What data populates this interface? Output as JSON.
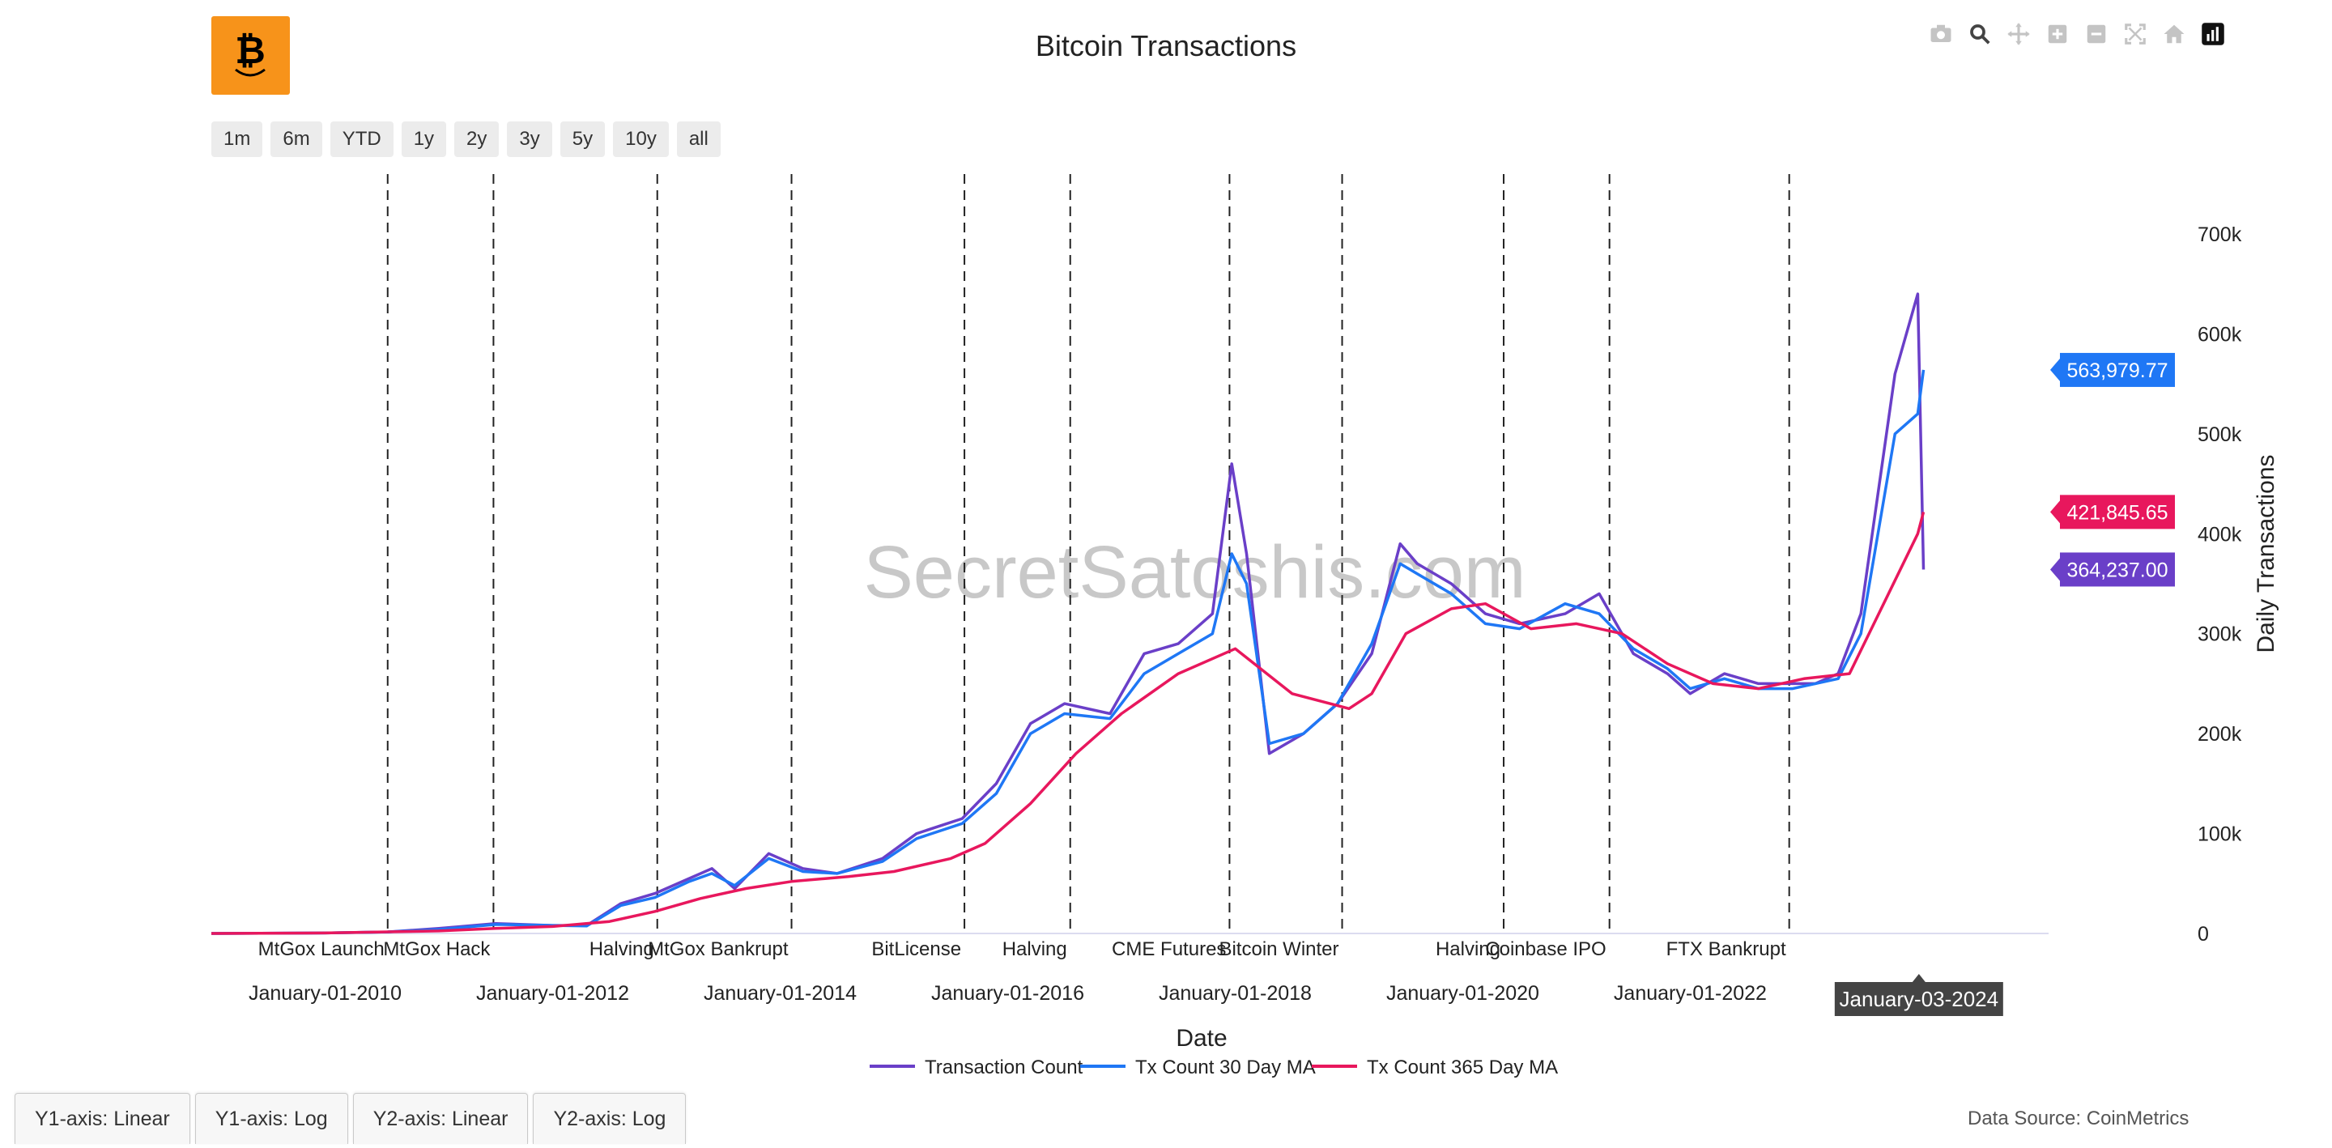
{
  "header": {
    "title": "Bitcoin Transactions"
  },
  "range_buttons": [
    "1m",
    "6m",
    "YTD",
    "1y",
    "2y",
    "3y",
    "5y",
    "10y",
    "all"
  ],
  "modebar": [
    "camera-icon",
    "zoom-icon",
    "pan-icon",
    "zoom-in-icon",
    "zoom-out-icon",
    "autoscale-icon",
    "reset-axes-icon",
    "plotly-logo-icon"
  ],
  "tabs": [
    "Y1-axis: Linear",
    "Y1-axis: Log",
    "Y2-axis: Linear",
    "Y2-axis: Log"
  ],
  "footer": {
    "source": "Data Source: CoinMetrics"
  },
  "watermark": "SecretSatoshis.com",
  "colors": {
    "tx": "#6a3fc8",
    "ma30": "#1f77f5",
    "ma365": "#e8175d",
    "event_line": "#222222",
    "brand": "#f7931a"
  },
  "chart_data": {
    "type": "line",
    "title": "Bitcoin Transactions",
    "xlabel": "Date",
    "ylabel": "Daily Transactions",
    "x_range": [
      2009.0,
      2025.15
    ],
    "ylim": [
      0,
      760000
    ],
    "y_ticks": [
      {
        "value": 0,
        "label": "0"
      },
      {
        "value": 100000,
        "label": "100k"
      },
      {
        "value": 200000,
        "label": "200k"
      },
      {
        "value": 300000,
        "label": "300k"
      },
      {
        "value": 400000,
        "label": "400k"
      },
      {
        "value": 500000,
        "label": "500k"
      },
      {
        "value": 600000,
        "label": "600k"
      },
      {
        "value": 700000,
        "label": "700k"
      }
    ],
    "x_ticks": [
      {
        "value": 2010.0,
        "label": "January-01-2010"
      },
      {
        "value": 2012.0,
        "label": "January-01-2012"
      },
      {
        "value": 2014.0,
        "label": "January-01-2014"
      },
      {
        "value": 2016.0,
        "label": "January-01-2016"
      },
      {
        "value": 2018.0,
        "label": "January-01-2018"
      },
      {
        "value": 2020.0,
        "label": "January-01-2020"
      },
      {
        "value": 2022.0,
        "label": "January-01-2022"
      }
    ],
    "hover_date": {
      "value": 2024.01,
      "label": "January-03-2024"
    },
    "events": [
      {
        "x": 2010.55,
        "label": "MtGox Launch"
      },
      {
        "x": 2011.48,
        "label": "MtGox Hack"
      },
      {
        "x": 2012.92,
        "label": "Halving"
      },
      {
        "x": 2014.1,
        "label": "MtGox Bankrupt"
      },
      {
        "x": 2015.62,
        "label": "BitLicense"
      },
      {
        "x": 2016.55,
        "label": "Halving"
      },
      {
        "x": 2017.95,
        "label": "CME Futures"
      },
      {
        "x": 2018.94,
        "label": "Bitcoin Winter"
      },
      {
        "x": 2020.36,
        "label": "Halving"
      },
      {
        "x": 2021.29,
        "label": "Coinbase IPO"
      },
      {
        "x": 2022.87,
        "label": "FTX Bankrupt"
      }
    ],
    "series": [
      {
        "name": "Transaction Count",
        "color": "#6a3fc8",
        "last_label": "364,237.00",
        "x": [
          2009.0,
          2010.0,
          2010.55,
          2011.0,
          2011.5,
          2012.0,
          2012.3,
          2012.6,
          2012.9,
          2013.2,
          2013.4,
          2013.6,
          2013.9,
          2014.2,
          2014.5,
          2014.9,
          2015.2,
          2015.6,
          2015.9,
          2016.2,
          2016.5,
          2016.9,
          2017.2,
          2017.5,
          2017.8,
          2017.97,
          2018.1,
          2018.3,
          2018.6,
          2018.9,
          2019.2,
          2019.45,
          2019.6,
          2019.9,
          2020.2,
          2020.5,
          2020.9,
          2021.2,
          2021.5,
          2021.8,
          2022.0,
          2022.3,
          2022.6,
          2022.9,
          2023.1,
          2023.3,
          2023.5,
          2023.8,
          2024.0,
          2024.05
        ],
        "y": [
          0,
          500,
          1500,
          5000,
          10000,
          8000,
          8000,
          30000,
          40000,
          55000,
          65000,
          45000,
          80000,
          65000,
          60000,
          75000,
          100000,
          115000,
          150000,
          210000,
          230000,
          220000,
          280000,
          290000,
          320000,
          470000,
          380000,
          180000,
          200000,
          230000,
          280000,
          390000,
          370000,
          350000,
          320000,
          310000,
          320000,
          340000,
          280000,
          260000,
          240000,
          260000,
          250000,
          250000,
          250000,
          260000,
          320000,
          560000,
          640000,
          364237
        ]
      },
      {
        "name": "Tx Count 30 Day MA",
        "color": "#1f77f5",
        "last_label": "563,979.77",
        "x": [
          2009.0,
          2010.0,
          2010.55,
          2011.0,
          2011.5,
          2012.0,
          2012.3,
          2012.6,
          2012.9,
          2013.2,
          2013.4,
          2013.6,
          2013.9,
          2014.2,
          2014.5,
          2014.9,
          2015.2,
          2015.6,
          2015.9,
          2016.2,
          2016.5,
          2016.9,
          2017.2,
          2017.5,
          2017.8,
          2017.97,
          2018.1,
          2018.3,
          2018.6,
          2018.9,
          2019.2,
          2019.45,
          2019.6,
          2019.9,
          2020.2,
          2020.5,
          2020.9,
          2021.2,
          2021.5,
          2021.8,
          2022.0,
          2022.3,
          2022.6,
          2022.9,
          2023.1,
          2023.3,
          2023.5,
          2023.8,
          2024.0,
          2024.05
        ],
        "y": [
          0,
          500,
          1500,
          4000,
          9000,
          8000,
          7500,
          28000,
          36000,
          52000,
          60000,
          48000,
          75000,
          62000,
          60000,
          72000,
          95000,
          110000,
          140000,
          200000,
          220000,
          215000,
          260000,
          280000,
          300000,
          380000,
          350000,
          190000,
          200000,
          230000,
          290000,
          370000,
          360000,
          340000,
          310000,
          305000,
          330000,
          320000,
          285000,
          265000,
          245000,
          255000,
          245000,
          245000,
          250000,
          255000,
          300000,
          500000,
          520000,
          563980
        ]
      },
      {
        "name": "Tx Count 365 Day MA",
        "color": "#e8175d",
        "last_label": "421,845.65",
        "x": [
          2009.0,
          2010.0,
          2011.0,
          2011.5,
          2012.0,
          2012.5,
          2012.9,
          2013.3,
          2013.7,
          2014.1,
          2014.6,
          2015.0,
          2015.5,
          2015.8,
          2016.2,
          2016.6,
          2017.0,
          2017.5,
          2018.0,
          2018.5,
          2019.0,
          2019.2,
          2019.5,
          2019.9,
          2020.2,
          2020.6,
          2021.0,
          2021.4,
          2021.8,
          2022.2,
          2022.6,
          2023.0,
          2023.4,
          2023.7,
          2024.0,
          2024.05
        ],
        "y": [
          0,
          500,
          2500,
          5000,
          7000,
          12000,
          22000,
          35000,
          45000,
          52000,
          57000,
          62000,
          75000,
          90000,
          130000,
          180000,
          220000,
          260000,
          285000,
          240000,
          225000,
          240000,
          300000,
          325000,
          330000,
          305000,
          310000,
          300000,
          270000,
          250000,
          245000,
          255000,
          260000,
          330000,
          400000,
          421846
        ]
      }
    ]
  }
}
